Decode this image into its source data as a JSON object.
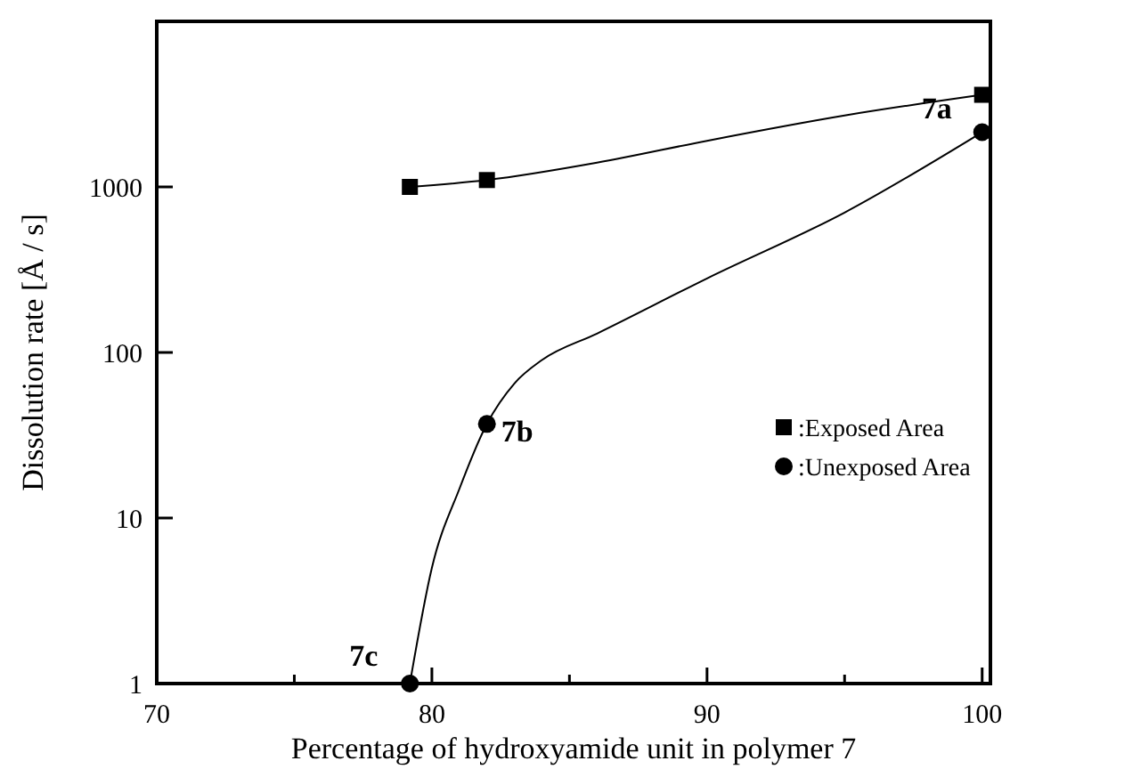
{
  "chart_data": {
    "type": "scatter",
    "xlabel": "Percentage of hydroxyamide unit in polymer 7",
    "ylabel": "Dissolution rate [Å / s]",
    "log": "y",
    "xlim": [
      70,
      100.3
    ],
    "xticks": [
      70,
      {
        "value": 75,
        "label": null
      },
      80,
      {
        "value": 85,
        "label": null
      },
      90,
      {
        "value": 95,
        "label": null
      },
      100
    ],
    "ylim": [
      1,
      10000
    ],
    "yticks": [
      1,
      10,
      100,
      1000,
      {
        "value": 10000,
        "label": null
      }
    ],
    "grid": false,
    "legend": "right",
    "series": [
      {
        "name": ":Exposed Area",
        "marker": "square",
        "color": "#000000",
        "x": [
          79.2,
          82,
          100
        ],
        "values": [
          1000,
          1100,
          3600
        ]
      },
      {
        "name": ":Unexposed Area",
        "marker": "circle",
        "color": "#000000",
        "x": [
          79.2,
          82,
          100
        ],
        "values": [
          1,
          37,
          2140
        ]
      },
      {
        "type": "line",
        "marker": "none",
        "color": "#000000",
        "x": [
          79.2,
          82,
          86,
          90,
          95,
          100
        ],
        "values": [
          1000,
          1100,
          1400,
          1900,
          2700,
          3600
        ]
      },
      {
        "type": "line",
        "marker": "none",
        "color": "#000000",
        "x": [
          79.2,
          80,
          81,
          82,
          83,
          84,
          86,
          90,
          95,
          100
        ],
        "values": [
          1,
          5,
          15,
          37,
          65,
          90,
          130,
          280,
          700,
          2140
        ]
      }
    ],
    "annotations": [
      {
        "text": "7a",
        "x": 100,
        "y": 2140
      },
      {
        "text": "7b",
        "x": 82,
        "y": 37
      },
      {
        "text": "7c",
        "x": 79.2,
        "y": 1
      }
    ]
  }
}
